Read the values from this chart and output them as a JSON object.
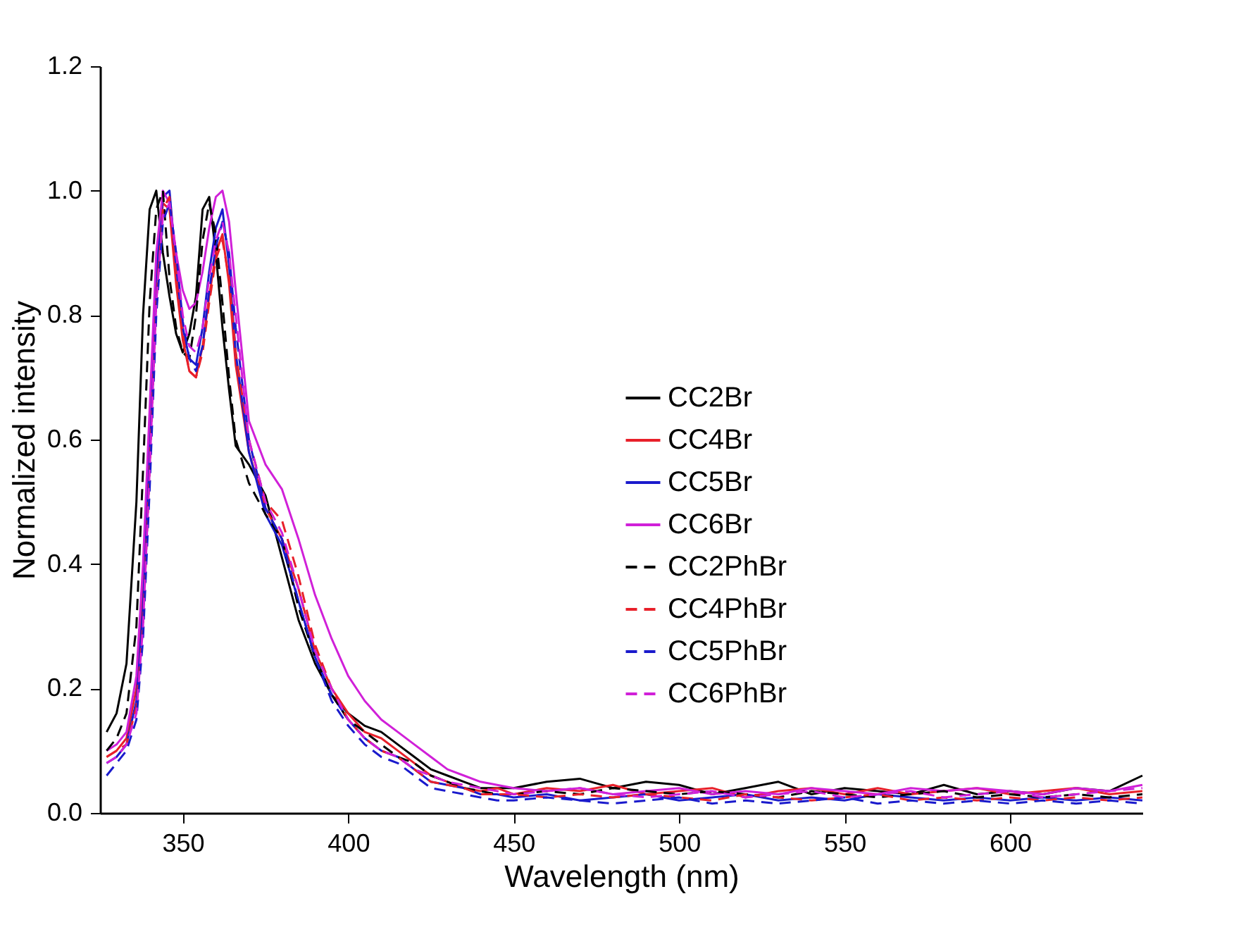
{
  "chart_data": {
    "type": "line",
    "xlabel": "Wavelength (nm)",
    "ylabel": "Normalized intensity",
    "xlim": [
      325,
      640
    ],
    "ylim": [
      0,
      1.2
    ],
    "xticks": [
      350,
      400,
      450,
      500,
      550,
      600
    ],
    "yticks": [
      {
        "value": 0,
        "label": "0.0"
      },
      {
        "value": 0.2,
        "label": "0.2"
      },
      {
        "value": 0.4,
        "label": "0.4"
      },
      {
        "value": 0.6,
        "label": "0.6"
      },
      {
        "value": 0.8,
        "label": "0.8"
      },
      {
        "value": 1,
        "label": "1.0"
      },
      {
        "value": 1.2,
        "label": "1.2"
      }
    ],
    "grid": false,
    "legend": "right",
    "marker": "none",
    "x": [
      327,
      330,
      333,
      336,
      338,
      340,
      342,
      344,
      346,
      348,
      350,
      352,
      354,
      356,
      358,
      360,
      362,
      364,
      366,
      370,
      375,
      380,
      385,
      390,
      395,
      400,
      405,
      410,
      415,
      420,
      425,
      430,
      435,
      440,
      445,
      450,
      460,
      470,
      480,
      490,
      500,
      510,
      520,
      530,
      540,
      550,
      560,
      570,
      580,
      590,
      600,
      610,
      620,
      630,
      640
    ],
    "series": [
      {
        "name": "CC2Br",
        "color": "#000000",
        "line_style": "solid",
        "values": [
          0.13,
          0.16,
          0.24,
          0.5,
          0.8,
          0.97,
          1.0,
          0.9,
          0.83,
          0.77,
          0.74,
          0.77,
          0.83,
          0.97,
          0.99,
          0.9,
          0.78,
          0.68,
          0.59,
          0.56,
          0.51,
          0.41,
          0.31,
          0.24,
          0.19,
          0.16,
          0.14,
          0.13,
          0.11,
          0.09,
          0.07,
          0.06,
          0.05,
          0.04,
          0.04,
          0.04,
          0.05,
          0.055,
          0.04,
          0.05,
          0.045,
          0.03,
          0.04,
          0.05,
          0.03,
          0.04,
          0.035,
          0.03,
          0.045,
          0.03,
          0.035,
          0.03,
          0.04,
          0.035,
          0.06
        ]
      },
      {
        "name": "CC4Br",
        "color": "#e8202a",
        "line_style": "solid",
        "values": [
          0.09,
          0.1,
          0.12,
          0.2,
          0.35,
          0.6,
          0.85,
          0.98,
          0.97,
          0.85,
          0.76,
          0.71,
          0.7,
          0.75,
          0.83,
          0.9,
          0.93,
          0.85,
          0.72,
          0.58,
          0.49,
          0.44,
          0.36,
          0.26,
          0.2,
          0.16,
          0.13,
          0.12,
          0.1,
          0.08,
          0.06,
          0.05,
          0.04,
          0.035,
          0.04,
          0.03,
          0.04,
          0.035,
          0.045,
          0.03,
          0.035,
          0.04,
          0.025,
          0.035,
          0.04,
          0.03,
          0.04,
          0.03,
          0.035,
          0.04,
          0.03,
          0.035,
          0.04,
          0.03,
          0.035
        ]
      },
      {
        "name": "CC5Br",
        "color": "#1a1acc",
        "line_style": "solid",
        "values": [
          0.08,
          0.09,
          0.11,
          0.18,
          0.33,
          0.6,
          0.87,
          0.99,
          1.0,
          0.88,
          0.78,
          0.73,
          0.72,
          0.78,
          0.87,
          0.94,
          0.97,
          0.88,
          0.74,
          0.58,
          0.48,
          0.43,
          0.34,
          0.25,
          0.19,
          0.15,
          0.12,
          0.1,
          0.09,
          0.07,
          0.05,
          0.045,
          0.04,
          0.03,
          0.03,
          0.025,
          0.03,
          0.02,
          0.025,
          0.03,
          0.02,
          0.025,
          0.03,
          0.02,
          0.025,
          0.02,
          0.03,
          0.025,
          0.02,
          0.025,
          0.02,
          0.025,
          0.02,
          0.025,
          0.02
        ]
      },
      {
        "name": "CC6Br",
        "color": "#d020d8",
        "line_style": "solid",
        "values": [
          0.1,
          0.11,
          0.13,
          0.22,
          0.4,
          0.65,
          0.9,
          1.0,
          0.98,
          0.9,
          0.84,
          0.81,
          0.82,
          0.87,
          0.94,
          0.99,
          1.0,
          0.95,
          0.84,
          0.63,
          0.56,
          0.52,
          0.44,
          0.35,
          0.28,
          0.22,
          0.18,
          0.15,
          0.13,
          0.11,
          0.09,
          0.07,
          0.06,
          0.05,
          0.045,
          0.04,
          0.035,
          0.04,
          0.03,
          0.035,
          0.04,
          0.03,
          0.035,
          0.03,
          0.04,
          0.035,
          0.03,
          0.04,
          0.035,
          0.04,
          0.035,
          0.03,
          0.04,
          0.035,
          0.045
        ]
      },
      {
        "name": "CC2PhBr",
        "color": "#000000",
        "line_style": "dashed",
        "values": [
          0.1,
          0.12,
          0.16,
          0.3,
          0.55,
          0.82,
          0.97,
          1.0,
          0.86,
          0.78,
          0.74,
          0.73,
          0.8,
          0.92,
          0.98,
          0.93,
          0.82,
          0.7,
          0.6,
          0.53,
          0.48,
          0.44,
          0.33,
          0.25,
          0.19,
          0.15,
          0.13,
          0.11,
          0.09,
          0.08,
          0.06,
          0.05,
          0.04,
          0.035,
          0.03,
          0.03,
          0.035,
          0.03,
          0.04,
          0.035,
          0.03,
          0.035,
          0.03,
          0.025,
          0.035,
          0.03,
          0.025,
          0.03,
          0.035,
          0.025,
          0.03,
          0.025,
          0.03,
          0.025,
          0.03
        ]
      },
      {
        "name": "CC4PhBr",
        "color": "#e8202a",
        "line_style": "dashed",
        "values": [
          0.09,
          0.1,
          0.11,
          0.17,
          0.3,
          0.55,
          0.82,
          0.97,
          0.99,
          0.88,
          0.77,
          0.71,
          0.7,
          0.74,
          0.82,
          0.89,
          0.92,
          0.86,
          0.74,
          0.6,
          0.5,
          0.47,
          0.38,
          0.27,
          0.2,
          0.15,
          0.12,
          0.1,
          0.09,
          0.07,
          0.05,
          0.045,
          0.04,
          0.03,
          0.03,
          0.03,
          0.025,
          0.03,
          0.025,
          0.03,
          0.025,
          0.02,
          0.03,
          0.025,
          0.02,
          0.025,
          0.03,
          0.02,
          0.025,
          0.02,
          0.025,
          0.02,
          0.025,
          0.02,
          0.025
        ]
      },
      {
        "name": "CC5PhBr",
        "color": "#1a1acc",
        "line_style": "dashed",
        "values": [
          0.06,
          0.08,
          0.1,
          0.15,
          0.28,
          0.52,
          0.8,
          0.95,
          0.98,
          0.9,
          0.79,
          0.73,
          0.71,
          0.75,
          0.84,
          0.91,
          0.95,
          0.9,
          0.78,
          0.6,
          0.49,
          0.44,
          0.34,
          0.25,
          0.18,
          0.14,
          0.11,
          0.09,
          0.08,
          0.06,
          0.04,
          0.035,
          0.03,
          0.025,
          0.02,
          0.02,
          0.025,
          0.02,
          0.015,
          0.02,
          0.025,
          0.015,
          0.02,
          0.015,
          0.02,
          0.025,
          0.015,
          0.02,
          0.015,
          0.02,
          0.015,
          0.02,
          0.015,
          0.02,
          0.015
        ]
      },
      {
        "name": "CC6PhBr",
        "color": "#d020d8",
        "line_style": "dashed",
        "values": [
          0.08,
          0.09,
          0.11,
          0.16,
          0.3,
          0.55,
          0.82,
          0.96,
          0.98,
          0.9,
          0.8,
          0.75,
          0.74,
          0.78,
          0.86,
          0.92,
          0.95,
          0.9,
          0.8,
          0.6,
          0.5,
          0.45,
          0.36,
          0.26,
          0.2,
          0.15,
          0.12,
          0.1,
          0.09,
          0.07,
          0.06,
          0.05,
          0.045,
          0.04,
          0.035,
          0.03,
          0.035,
          0.04,
          0.03,
          0.025,
          0.03,
          0.035,
          0.025,
          0.03,
          0.035,
          0.025,
          0.03,
          0.035,
          0.025,
          0.03,
          0.035,
          0.025,
          0.03,
          0.035,
          0.04
        ]
      }
    ]
  }
}
